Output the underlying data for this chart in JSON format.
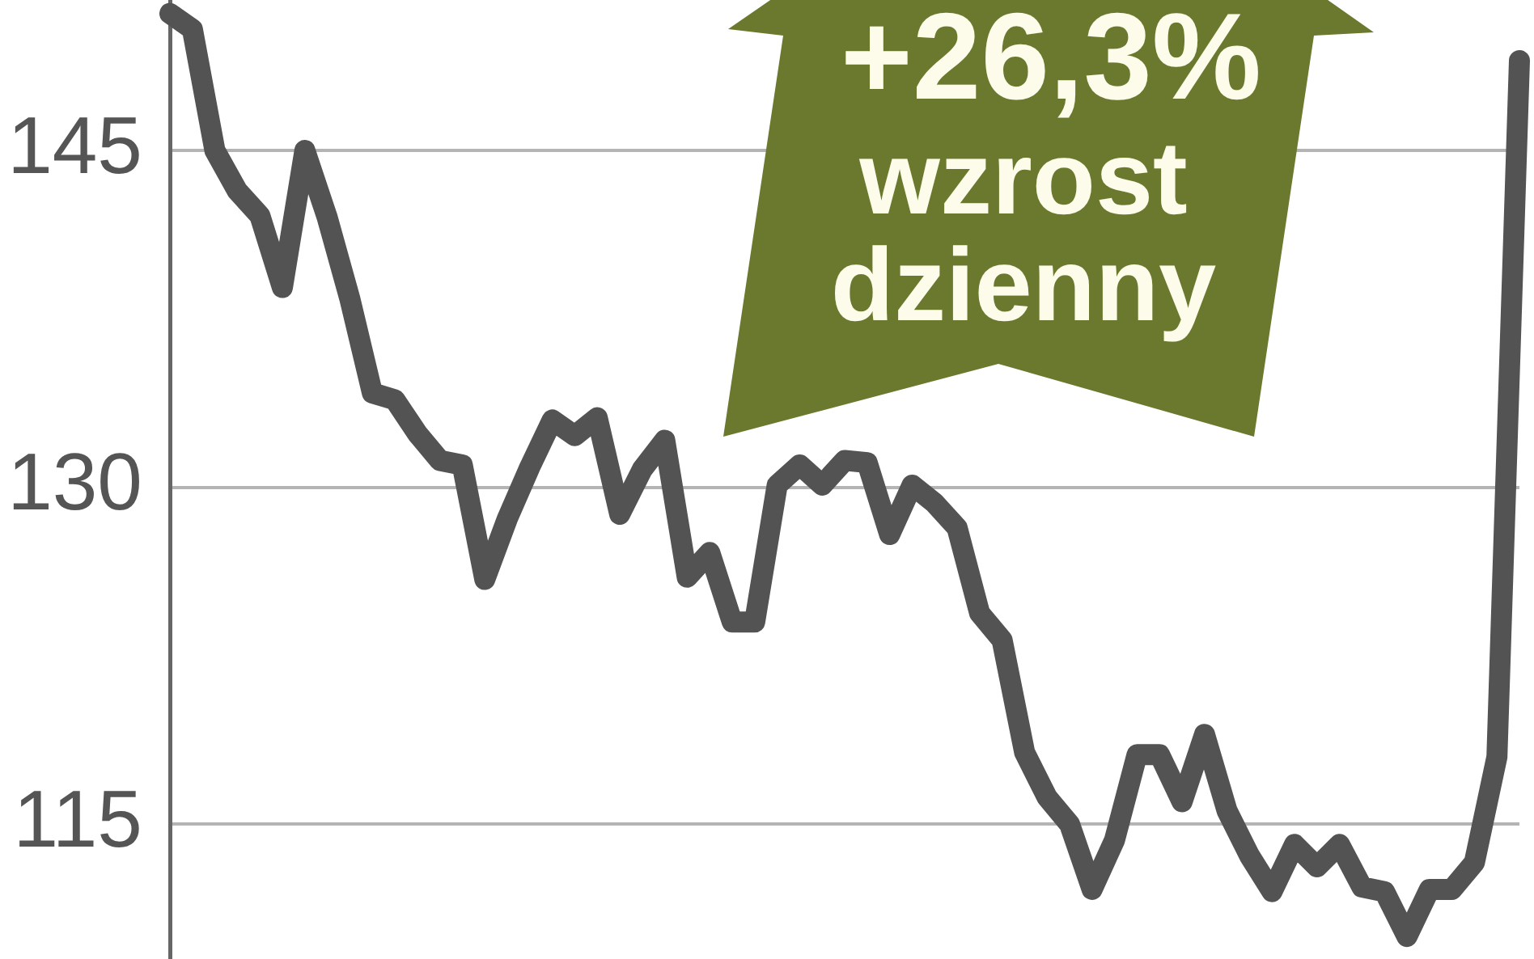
{
  "chart_data": {
    "type": "line",
    "categories": [
      null,
      null,
      null,
      null,
      null,
      null,
      null,
      null,
      null,
      null,
      null,
      null,
      null,
      null,
      null,
      null,
      null,
      null,
      null,
      null,
      null,
      null,
      null,
      null,
      null,
      null,
      null,
      null,
      null,
      null,
      null,
      null,
      null,
      null,
      null,
      null,
      null,
      null,
      null,
      null,
      null,
      null,
      null,
      null,
      null,
      null,
      null,
      null,
      null,
      null,
      null,
      null,
      null,
      null,
      null,
      null,
      null,
      null,
      null,
      null,
      null
    ],
    "series": [
      {
        "color": "#535353",
        "values": [
          151.1,
          150.4,
          145.0,
          143.2,
          142.1,
          138.9,
          145.0,
          142.0,
          138.4,
          134.2,
          133.9,
          132.4,
          131.2,
          131.0,
          125.9,
          128.6,
          130.9,
          133.0,
          132.3,
          133.1,
          128.8,
          130.8,
          132.1,
          126.0,
          127.1,
          124.0,
          124.0,
          130.1,
          131.0,
          130.1,
          131.2,
          131.1,
          127.9,
          130.1,
          129.3,
          128.2,
          124.4,
          123.2,
          118.2,
          116.2,
          115.0,
          112.1,
          114.3,
          118.1,
          118.1,
          116.0,
          119.0,
          115.6,
          113.6,
          112.0,
          114.1,
          113.1,
          114.1,
          112.2,
          112.0,
          110.0,
          112.1,
          112.1,
          113.3,
          118.0,
          149.0
        ]
      }
    ],
    "ylim": [
      109,
      151.7
    ],
    "yticks": [
      115,
      130,
      145
    ],
    "grid": "y",
    "tick_labels": "y",
    "line_style": "solid",
    "annotations": [
      "+26,3%",
      "wzrost dzienny"
    ]
  }
}
